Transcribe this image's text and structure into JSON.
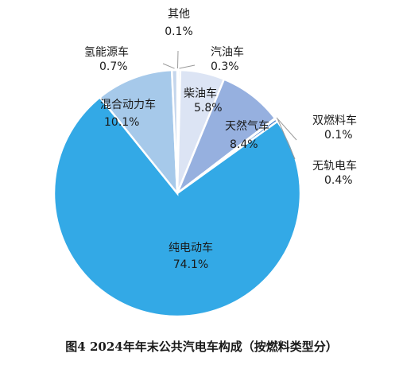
{
  "caption": "图4 2024年年末公共汽电车构成（按燃料类型分）",
  "chart_data": {
    "type": "pie",
    "title": "",
    "slices": [
      {
        "name": "其他",
        "value": 0.1,
        "label_value": "0.1%",
        "color": "#dfe6f2"
      },
      {
        "name": "汽油车",
        "value": 0.3,
        "label_value": "0.3%",
        "color": "#e9eef7"
      },
      {
        "name": "柴油车",
        "value": 5.8,
        "label_value": "5.8%",
        "color": "#dce4f4"
      },
      {
        "name": "天然气车",
        "value": 8.4,
        "label_value": "8.4%",
        "color": "#96b0df"
      },
      {
        "name": "双燃料车",
        "value": 0.1,
        "label_value": "0.1%",
        "color": "#7f9fd6"
      },
      {
        "name": "无轨电车",
        "value": 0.4,
        "label_value": "0.4%",
        "color": "#4a83cc"
      },
      {
        "name": "纯电动车",
        "value": 74.1,
        "label_value": "74.1%",
        "color": "#33a9e6"
      },
      {
        "name": "混合动力车",
        "value": 10.1,
        "label_value": "10.1%",
        "color": "#a6c9ea"
      },
      {
        "name": "氢能源车",
        "value": 0.7,
        "label_value": "0.7%",
        "color": "#c5d6ec"
      }
    ]
  }
}
